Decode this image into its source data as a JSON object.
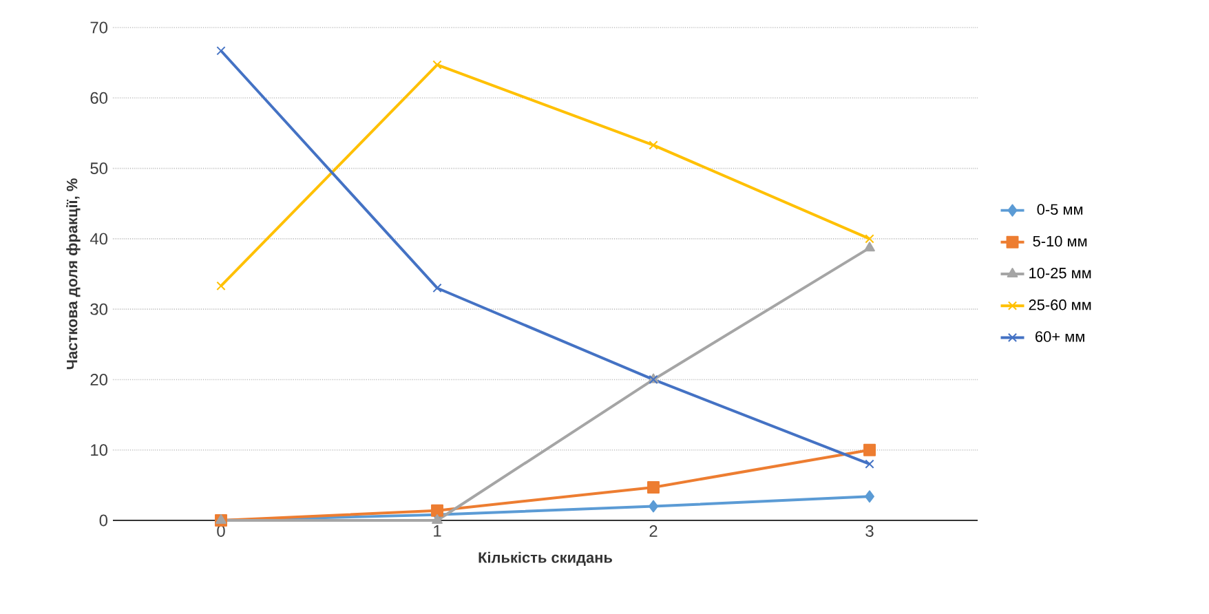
{
  "chart_data": {
    "type": "line",
    "xlabel": "Кількість скидань",
    "ylabel": "Часткова доля фракції, %",
    "x": [
      0,
      1,
      2,
      3
    ],
    "xlim": [
      -0.5,
      3.5
    ],
    "xticks": [
      0,
      1,
      2,
      3
    ],
    "ylim": [
      0,
      70
    ],
    "yticks": [
      0,
      10,
      20,
      30,
      40,
      50,
      60,
      70
    ],
    "grid": "y",
    "legend": "right",
    "line_style": "solid",
    "series": [
      {
        "name": "0-5 мм",
        "color": "#5b9bd5",
        "marker": "diamond",
        "values": [
          0,
          0.8,
          2.0,
          3.4
        ]
      },
      {
        "name": "5-10 мм",
        "color": "#ed7d31",
        "marker": "square",
        "values": [
          0,
          1.4,
          4.7,
          10
        ]
      },
      {
        "name": "10-25 мм",
        "color": "#a5a5a5",
        "marker": "triangle",
        "values": [
          0,
          0,
          20,
          38.7
        ]
      },
      {
        "name": "25-60 мм",
        "color": "#ffc000",
        "marker": "cross",
        "values": [
          33.3,
          64.7,
          53.3,
          40
        ]
      },
      {
        "name": "60+ мм",
        "color": "#4472c4",
        "marker": "cross",
        "values": [
          66.7,
          33,
          20,
          8
        ]
      }
    ]
  }
}
